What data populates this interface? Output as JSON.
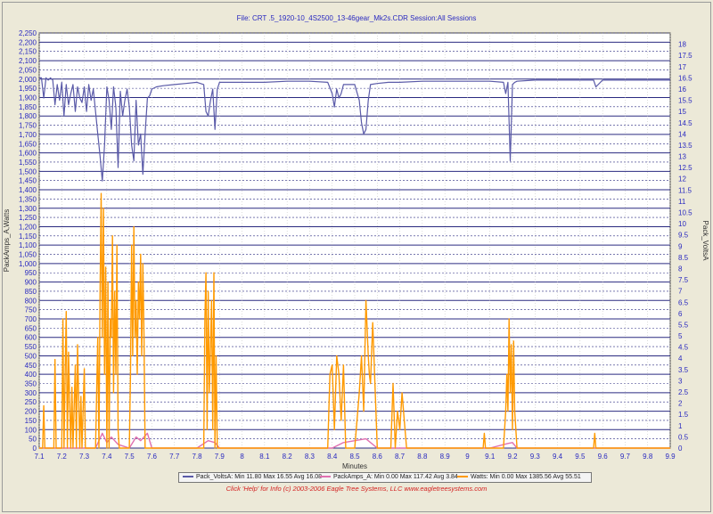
{
  "header": {
    "title": "File: CRT .5_1920-10_4S2500_13-46gear_Mk2s.CDR   Session:All Sessions"
  },
  "footer": {
    "text": "Click 'Help' for Info  (c) 2003-2006 Eagle Tree Systems, LLC        www.eagletreesystems.com"
  },
  "legend": {
    "items": [
      {
        "label": "Pack_VoltsA:  Min 11.80 Max 16.55 Avg 16.08",
        "color": "#5a5aa8"
      },
      {
        "label": "PackAmps_A:  Min 0.00 Max 117.42 Avg 3.84",
        "color": "#e070b0"
      },
      {
        "label": "Watts:  Min 0.00 Max 1385.56 Avg 55.51",
        "color": "#ff9a00"
      }
    ]
  },
  "chart_data": {
    "type": "line",
    "xlabel": "Minutes",
    "ylabel_left": "PackAmps_A,Watts",
    "ylabel_right": "Pack_VoltsA",
    "xlim": [
      7.1,
      9.9
    ],
    "ylim_left": [
      0,
      2250
    ],
    "ylim_right": [
      0,
      18.5
    ],
    "grid": true,
    "x_ticks": [
      "7.1",
      "7.2",
      "7.3",
      "7.4",
      "7.5",
      "7.6",
      "7.7",
      "7.8",
      "7.9",
      "8",
      "8.1",
      "8.2",
      "8.3",
      "8.4",
      "8.5",
      "8.6",
      "8.7",
      "8.8",
      "8.9",
      "9",
      "9.1",
      "9.2",
      "9.3",
      "9.4",
      "9.5",
      "9.6",
      "9.7",
      "9.8",
      "9.9"
    ],
    "y_ticks_left": [
      "0",
      "50",
      "100",
      "150",
      "200",
      "250",
      "300",
      "350",
      "400",
      "450",
      "500",
      "550",
      "600",
      "650",
      "700",
      "750",
      "800",
      "850",
      "900",
      "950",
      "1,000",
      "1,050",
      "1,100",
      "1,150",
      "1,200",
      "1,250",
      "1,300",
      "1,350",
      "1,400",
      "1,450",
      "1,500",
      "1,550",
      "1,600",
      "1,650",
      "1,700",
      "1,750",
      "1,800",
      "1,850",
      "1,900",
      "1,950",
      "2,000",
      "2,050",
      "2,100",
      "2,150",
      "2,200",
      "2,250"
    ],
    "y_ticks_right": [
      "0",
      "0.5",
      "1",
      "1.5",
      "2",
      "2.5",
      "3",
      "3.5",
      "4",
      "4.5",
      "5",
      "5.5",
      "6",
      "6.5",
      "7",
      "7.5",
      "8",
      "8.5",
      "9",
      "9.5",
      "10",
      "10.5",
      "11",
      "11.5",
      "12",
      "12.5",
      "13",
      "13.5",
      "14",
      "14.5",
      "15",
      "15.5",
      "16",
      "16.5",
      "17",
      "17.5",
      "18"
    ],
    "series": [
      {
        "name": "Pack_VoltsA",
        "axis": "right",
        "color": "#5a5aa8",
        "x": [
          7.1,
          7.11,
          7.12,
          7.13,
          7.14,
          7.15,
          7.16,
          7.17,
          7.18,
          7.19,
          7.2,
          7.21,
          7.22,
          7.23,
          7.24,
          7.25,
          7.26,
          7.27,
          7.28,
          7.29,
          7.3,
          7.31,
          7.32,
          7.33,
          7.34,
          7.35,
          7.36,
          7.37,
          7.38,
          7.39,
          7.4,
          7.41,
          7.42,
          7.43,
          7.44,
          7.45,
          7.46,
          7.47,
          7.48,
          7.49,
          7.5,
          7.51,
          7.52,
          7.53,
          7.54,
          7.55,
          7.56,
          7.57,
          7.58,
          7.59,
          7.6,
          7.62,
          7.65,
          7.7,
          7.75,
          7.8,
          7.83,
          7.84,
          7.85,
          7.86,
          7.87,
          7.88,
          7.89,
          7.9,
          7.92,
          8.0,
          8.1,
          8.2,
          8.3,
          8.38,
          8.4,
          8.41,
          8.42,
          8.43,
          8.44,
          8.45,
          8.5,
          8.52,
          8.53,
          8.54,
          8.55,
          8.56,
          8.57,
          8.6,
          8.65,
          8.7,
          8.8,
          8.9,
          9.0,
          9.1,
          9.16,
          9.17,
          9.18,
          9.19,
          9.2,
          9.21,
          9.22,
          9.3,
          9.5,
          9.56,
          9.57,
          9.6,
          9.8,
          9.9
        ],
        "values": [
          16.5,
          16.5,
          15.6,
          16.5,
          16.4,
          16.5,
          16.4,
          15.3,
          16.2,
          15.5,
          16.3,
          14.8,
          16.2,
          15.3,
          15.8,
          16.2,
          15.0,
          16.1,
          15.6,
          15.4,
          16.1,
          15.0,
          16.2,
          15.5,
          16.0,
          15.0,
          14.0,
          13.0,
          11.9,
          13.5,
          16.1,
          15.5,
          14.2,
          16.1,
          15.2,
          12.5,
          15.9,
          14.8,
          15.5,
          16.0,
          15.2,
          13.5,
          12.8,
          15.5,
          13.5,
          14.0,
          12.2,
          14.0,
          15.6,
          15.7,
          16.0,
          16.1,
          16.15,
          16.2,
          16.25,
          16.3,
          16.2,
          15.0,
          14.8,
          15.5,
          16.0,
          14.2,
          16.0,
          16.3,
          16.3,
          16.3,
          16.3,
          16.35,
          16.35,
          16.3,
          15.8,
          15.2,
          16.0,
          15.6,
          15.8,
          16.2,
          16.2,
          15.5,
          14.5,
          14.0,
          14.2,
          15.5,
          16.2,
          16.25,
          16.3,
          16.3,
          16.35,
          16.35,
          16.35,
          16.35,
          16.3,
          15.8,
          16.3,
          12.8,
          16.2,
          16.3,
          16.35,
          16.4,
          16.4,
          16.4,
          16.1,
          16.4,
          16.4,
          16.4
        ]
      },
      {
        "name": "Watts",
        "axis": "left",
        "color": "#ff9a00",
        "x": [
          7.1,
          7.115,
          7.12,
          7.125,
          7.15,
          7.165,
          7.17,
          7.175,
          7.2,
          7.205,
          7.21,
          7.215,
          7.22,
          7.225,
          7.23,
          7.24,
          7.245,
          7.25,
          7.26,
          7.265,
          7.27,
          7.28,
          7.285,
          7.29,
          7.3,
          7.305,
          7.31,
          7.32,
          7.35,
          7.36,
          7.365,
          7.37,
          7.375,
          7.38,
          7.385,
          7.39,
          7.395,
          7.4,
          7.405,
          7.41,
          7.415,
          7.42,
          7.425,
          7.43,
          7.435,
          7.44,
          7.445,
          7.45,
          7.455,
          7.46,
          7.47,
          7.49,
          7.5,
          7.505,
          7.51,
          7.515,
          7.52,
          7.525,
          7.53,
          7.535,
          7.54,
          7.545,
          7.55,
          7.555,
          7.56,
          7.565,
          7.57,
          7.58,
          7.6,
          7.8,
          7.83,
          7.835,
          7.84,
          7.845,
          7.85,
          7.855,
          7.86,
          7.865,
          7.87,
          7.875,
          7.88,
          7.885,
          7.89,
          7.9,
          8.3,
          8.38,
          8.39,
          8.4,
          8.41,
          8.42,
          8.43,
          8.44,
          8.45,
          8.46,
          8.5,
          8.52,
          8.53,
          8.54,
          8.55,
          8.56,
          8.565,
          8.57,
          8.58,
          8.6,
          8.65,
          8.66,
          8.67,
          8.68,
          8.69,
          8.7,
          8.71,
          8.72,
          8.73,
          8.8,
          9.0,
          9.07,
          9.075,
          9.08,
          9.16,
          9.17,
          9.175,
          9.18,
          9.185,
          9.19,
          9.195,
          9.2,
          9.205,
          9.21,
          9.22,
          9.3,
          9.55,
          9.56,
          9.565,
          9.57,
          9.9
        ],
        "values": [
          0,
          0,
          230,
          0,
          0,
          0,
          480,
          0,
          0,
          700,
          0,
          400,
          740,
          0,
          520,
          0,
          330,
          0,
          450,
          0,
          560,
          0,
          280,
          0,
          430,
          0,
          0,
          0,
          0,
          600,
          0,
          850,
          1380,
          600,
          1300,
          400,
          980,
          0,
          900,
          0,
          700,
          600,
          1150,
          300,
          850,
          400,
          1100,
          100,
          0,
          0,
          0,
          0,
          0,
          400,
          1100,
          500,
          1200,
          600,
          800,
          400,
          900,
          700,
          1050,
          500,
          1000,
          600,
          0,
          0,
          0,
          0,
          0,
          700,
          950,
          100,
          850,
          300,
          550,
          800,
          100,
          950,
          0,
          500,
          0,
          0,
          0,
          0,
          400,
          450,
          100,
          500,
          400,
          150,
          450,
          0,
          0,
          300,
          500,
          200,
          800,
          500,
          400,
          350,
          680,
          0,
          0,
          0,
          350,
          0,
          200,
          100,
          300,
          150,
          0,
          0,
          0,
          0,
          80,
          0,
          0,
          200,
          400,
          200,
          700,
          300,
          560,
          100,
          580,
          200,
          0,
          0,
          0,
          0,
          80,
          0,
          0
        ]
      },
      {
        "name": "PackAmps_A",
        "axis": "left",
        "color": "#e070b0",
        "x": [
          7.1,
          7.2,
          7.3,
          7.35,
          7.38,
          7.4,
          7.42,
          7.45,
          7.5,
          7.53,
          7.55,
          7.58,
          7.6,
          7.8,
          7.85,
          7.88,
          7.9,
          8.4,
          8.45,
          8.55,
          8.6,
          8.7,
          9.1,
          9.18,
          9.2,
          9.22,
          9.9
        ],
        "values": [
          0,
          0,
          0,
          0,
          80,
          30,
          60,
          20,
          0,
          60,
          40,
          80,
          0,
          0,
          40,
          30,
          0,
          0,
          30,
          50,
          0,
          0,
          0,
          25,
          30,
          0,
          0
        ]
      }
    ]
  }
}
